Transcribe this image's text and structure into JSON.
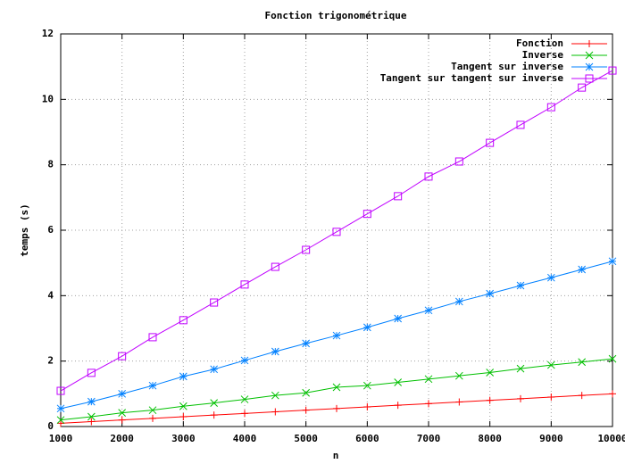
{
  "chart_data": {
    "type": "line",
    "title": "Fonction trigonométrique",
    "xlabel": "n",
    "ylabel": "temps (s)",
    "x": [
      1000,
      1500,
      2000,
      2500,
      3000,
      3500,
      4000,
      4500,
      5000,
      5500,
      6000,
      6500,
      7000,
      7500,
      8000,
      8500,
      9000,
      9500,
      10000
    ],
    "series": [
      {
        "name": "Fonction",
        "color": "#ff0000",
        "marker": "plus",
        "values": [
          0.1,
          0.15,
          0.2,
          0.25,
          0.3,
          0.35,
          0.4,
          0.45,
          0.5,
          0.55,
          0.6,
          0.65,
          0.7,
          0.75,
          0.8,
          0.85,
          0.9,
          0.95,
          1.0
        ]
      },
      {
        "name": "Inverse",
        "color": "#00c000",
        "marker": "cross",
        "values": [
          0.2,
          0.3,
          0.42,
          0.5,
          0.62,
          0.72,
          0.83,
          0.95,
          1.03,
          1.2,
          1.25,
          1.35,
          1.45,
          1.55,
          1.65,
          1.77,
          1.88,
          1.97,
          2.07
        ]
      },
      {
        "name": "Tangent sur inverse",
        "color": "#0080ff",
        "marker": "star",
        "values": [
          0.55,
          0.76,
          1.0,
          1.25,
          1.53,
          1.75,
          2.02,
          2.29,
          2.54,
          2.78,
          3.03,
          3.3,
          3.55,
          3.82,
          4.06,
          4.31,
          4.55,
          4.8,
          5.05
        ]
      },
      {
        "name": "Tangent sur tangent sur inverse",
        "color": "#c000ff",
        "marker": "square",
        "values": [
          1.09,
          1.64,
          2.15,
          2.73,
          3.25,
          3.79,
          4.34,
          4.88,
          5.4,
          5.95,
          6.5,
          7.04,
          7.64,
          8.1,
          8.67,
          9.22,
          9.76,
          10.36,
          10.88
        ]
      }
    ],
    "xlim": [
      1000,
      10000
    ],
    "xticks": [
      1000,
      2000,
      3000,
      4000,
      5000,
      6000,
      7000,
      8000,
      9000,
      10000
    ],
    "ylim": [
      0,
      12
    ],
    "yticks": [
      0,
      2,
      4,
      6,
      8,
      10,
      12
    ],
    "grid": true,
    "legend": "top right"
  }
}
